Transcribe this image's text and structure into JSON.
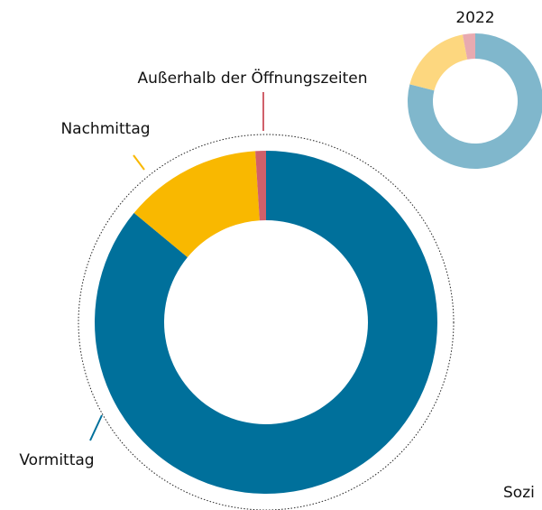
{
  "chart_data": [
    {
      "type": "donut",
      "categories": [
        "Vormittag",
        "Nachmittag",
        "Außerhalb der Öffnungszeiten"
      ],
      "values": [
        86,
        13,
        1
      ],
      "colors": [
        "#00709b",
        "#f9b800",
        "#d0606a"
      ],
      "annotation": "Sozi"
    },
    {
      "type": "donut",
      "title": "2022",
      "values": [
        79,
        18,
        3
      ],
      "colors": [
        "#80b7cc",
        "#fdd77f",
        "#e8aab0"
      ]
    }
  ]
}
